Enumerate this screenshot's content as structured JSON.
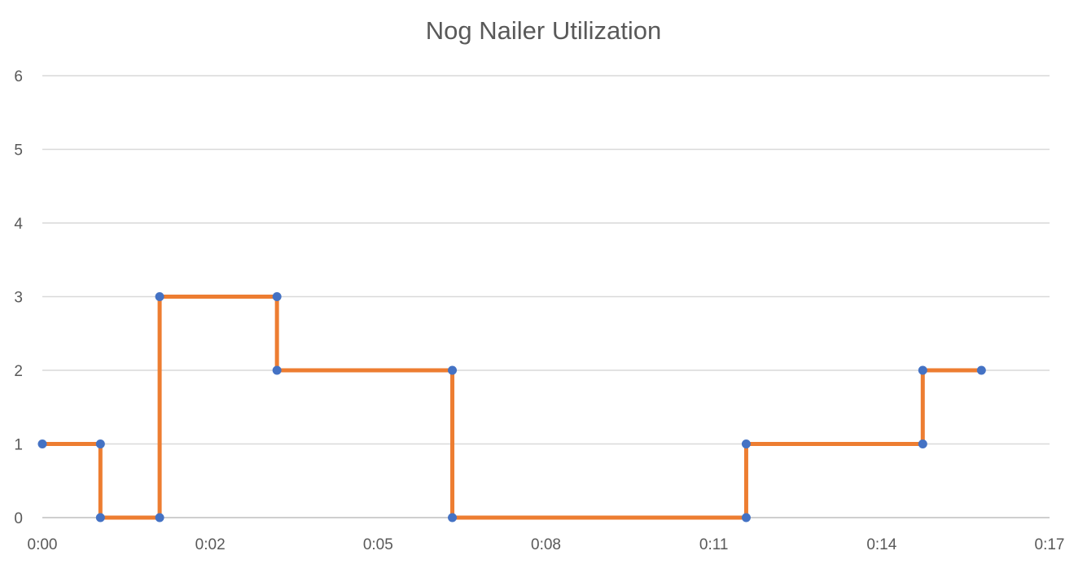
{
  "chart_data": {
    "type": "line",
    "title": "Nog Nailer Utilization",
    "xlabel": "",
    "ylabel": "",
    "xlim_minutes": [
      0,
      17
    ],
    "ylim": [
      0,
      6
    ],
    "x_ticks": [
      "0:00",
      "0:02",
      "0:05",
      "0:08",
      "0:11",
      "0:14",
      "0:17"
    ],
    "y_ticks": [
      "0",
      "1",
      "2",
      "3",
      "4",
      "5",
      "6"
    ],
    "grid": "horizontal",
    "legend": "none",
    "step": true,
    "x_time": [
      "0:00",
      "0:01",
      "0:01",
      "0:02",
      "0:02",
      "0:04",
      "0:04",
      "0:07",
      "0:07",
      "0:12",
      "0:12",
      "0:15",
      "0:15",
      "0:16"
    ],
    "x_minutes": [
      0,
      0.98,
      0.98,
      1.98,
      1.98,
      3.96,
      3.96,
      6.92,
      6.92,
      11.88,
      11.88,
      14.86,
      14.86,
      15.85
    ],
    "y": [
      1,
      1,
      0,
      0,
      3,
      3,
      2,
      2,
      0,
      0,
      1,
      1,
      2,
      2
    ],
    "colors": {
      "line": "#ED7D31",
      "marker": "#4472C4",
      "grid": "#D9D9D9",
      "text": "#595959"
    }
  }
}
